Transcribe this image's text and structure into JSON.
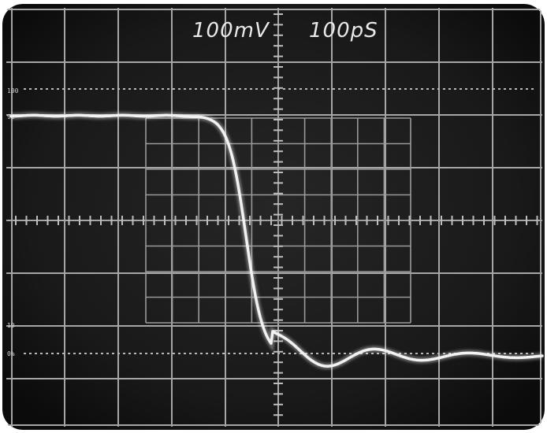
{
  "scope": {
    "vertical_scale": "100mV",
    "time_scale": "100pS",
    "markers": [
      "100",
      "90",
      "10",
      "0%"
    ],
    "colors": {
      "screen": "#1a1a1a",
      "screen_edge": "#0c0c0c",
      "graticule": "#a6a6a6",
      "trace": "#f2f2f2",
      "bezel": "#ffffff"
    }
  }
}
